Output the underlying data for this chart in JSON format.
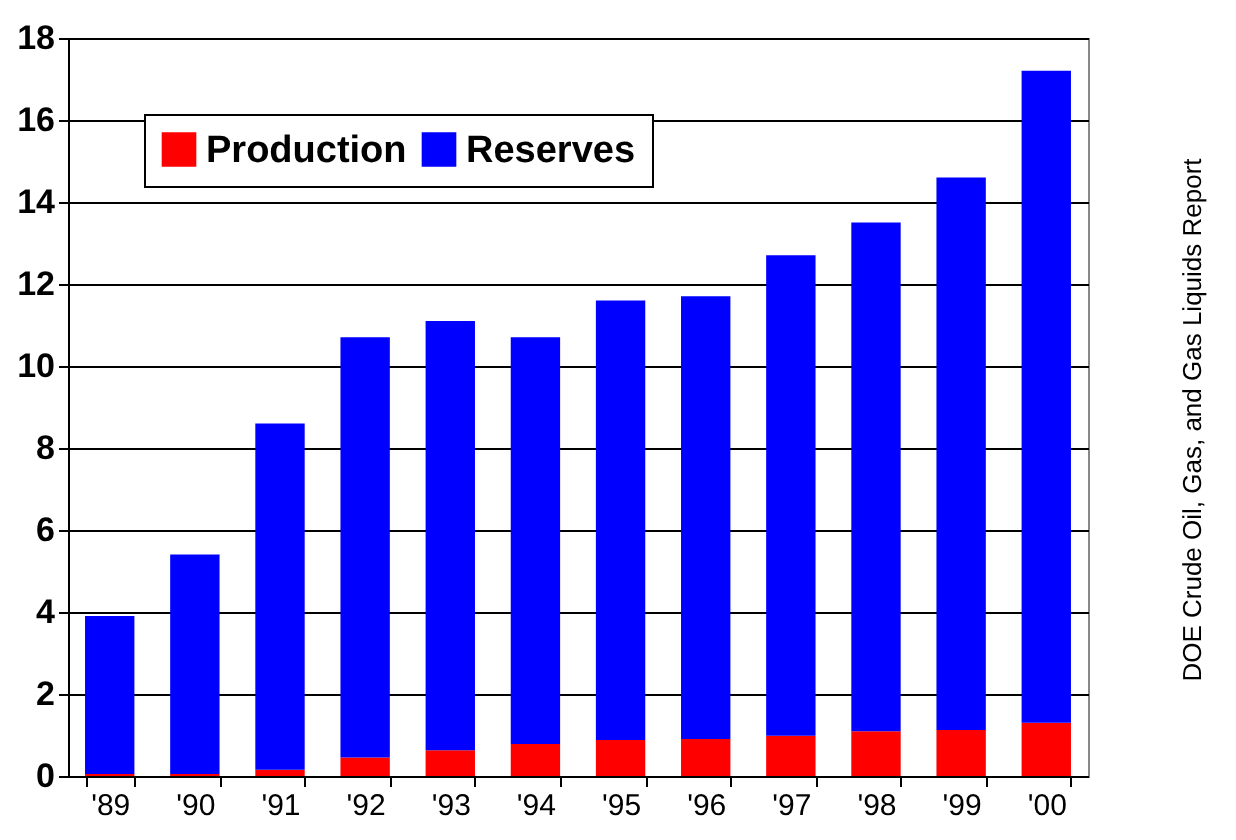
{
  "chart_data": {
    "type": "bar",
    "stacked": true,
    "categories": [
      "'89",
      "'90",
      "'91",
      "'92",
      "'93",
      "'94",
      "'95",
      "'96",
      "'97",
      "'98",
      "'99",
      "'00"
    ],
    "series": [
      {
        "name": "Production",
        "color": "#ff0000",
        "values": [
          0.05,
          0.05,
          0.15,
          0.45,
          0.63,
          0.78,
          0.88,
          0.9,
          0.98,
          1.09,
          1.12,
          1.3
        ]
      },
      {
        "name": "Reserves",
        "color": "#0000ff",
        "values": [
          3.85,
          5.35,
          8.45,
          10.25,
          10.47,
          9.92,
          10.72,
          10.8,
          11.72,
          12.41,
          13.48,
          15.9
        ]
      }
    ],
    "ylim": [
      0,
      18
    ],
    "yticks": [
      0,
      2,
      4,
      6,
      8,
      10,
      12,
      14,
      16,
      18
    ],
    "grid": "y",
    "legend": "top left",
    "annotations": [
      "DOE Crude Oil, Gas, and Gas Liquids Report"
    ]
  }
}
